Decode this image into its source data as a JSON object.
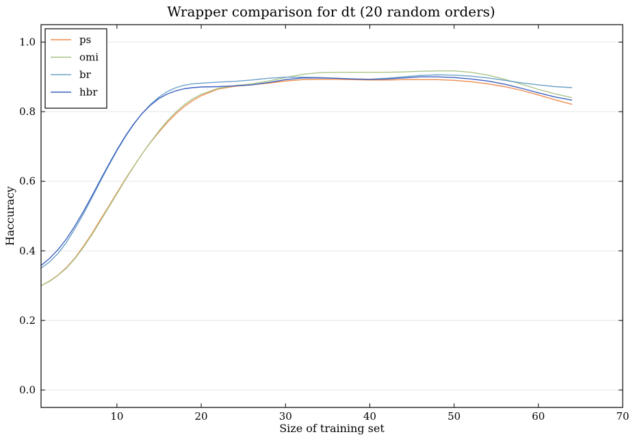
{
  "chart_data": {
    "type": "line",
    "title": "Wrapper comparison for dt (20 random orders)",
    "xlabel": "Size of training set",
    "ylabel": "Haccuracy",
    "xlim": [
      1,
      70
    ],
    "ylim": [
      -0.05,
      1.05
    ],
    "xticks": [
      10,
      20,
      30,
      40,
      50,
      60,
      70
    ],
    "yticks": [
      0.0,
      0.2,
      0.4,
      0.6,
      0.8,
      1.0
    ],
    "xtick_labels": [
      "10",
      "20",
      "30",
      "40",
      "50",
      "60",
      "70"
    ],
    "ytick_labels": [
      "0.0",
      "0.2",
      "0.4",
      "0.6",
      "0.8",
      "1.0"
    ],
    "grid": "horizontal",
    "legend_position": "top-left",
    "x": [
      1,
      2,
      3,
      4,
      5,
      6,
      7,
      8,
      9,
      10,
      11,
      12,
      13,
      14,
      15,
      16,
      17,
      18,
      19,
      20,
      22,
      24,
      26,
      28,
      30,
      32,
      34,
      36,
      38,
      40,
      42,
      44,
      46,
      48,
      50,
      52,
      54,
      56,
      58,
      60,
      62,
      64
    ],
    "series": [
      {
        "name": "ps",
        "color": "#ee8a4a",
        "values": [
          0.3,
          0.313,
          0.33,
          0.352,
          0.379,
          0.412,
          0.448,
          0.488,
          0.527,
          0.567,
          0.606,
          0.643,
          0.679,
          0.712,
          0.742,
          0.77,
          0.794,
          0.815,
          0.832,
          0.846,
          0.865,
          0.873,
          0.877,
          0.882,
          0.888,
          0.892,
          0.893,
          0.893,
          0.892,
          0.891,
          0.891,
          0.892,
          0.892,
          0.892,
          0.89,
          0.886,
          0.88,
          0.872,
          0.861,
          0.848,
          0.834,
          0.821
        ]
      },
      {
        "name": "omi",
        "color": "#a8c488",
        "values": [
          0.3,
          0.312,
          0.329,
          0.35,
          0.377,
          0.409,
          0.445,
          0.484,
          0.524,
          0.564,
          0.604,
          0.642,
          0.679,
          0.713,
          0.745,
          0.774,
          0.799,
          0.82,
          0.837,
          0.85,
          0.867,
          0.875,
          0.88,
          0.888,
          0.898,
          0.907,
          0.912,
          0.913,
          0.913,
          0.913,
          0.913,
          0.914,
          0.916,
          0.917,
          0.917,
          0.913,
          0.905,
          0.893,
          0.879,
          0.864,
          0.851,
          0.84
        ]
      },
      {
        "name": "br",
        "color": "#6aa0c8",
        "values": [
          0.35,
          0.368,
          0.392,
          0.424,
          0.463,
          0.505,
          0.551,
          0.598,
          0.644,
          0.688,
          0.728,
          0.764,
          0.795,
          0.821,
          0.842,
          0.858,
          0.869,
          0.876,
          0.88,
          0.882,
          0.885,
          0.887,
          0.891,
          0.896,
          0.899,
          0.899,
          0.898,
          0.896,
          0.894,
          0.893,
          0.896,
          0.9,
          0.904,
          0.906,
          0.905,
          0.902,
          0.897,
          0.89,
          0.883,
          0.877,
          0.872,
          0.869
        ]
      },
      {
        "name": "hbr",
        "color": "#3a5fc0",
        "values": [
          0.358,
          0.378,
          0.403,
          0.434,
          0.471,
          0.512,
          0.556,
          0.602,
          0.647,
          0.69,
          0.73,
          0.765,
          0.795,
          0.819,
          0.838,
          0.851,
          0.86,
          0.866,
          0.869,
          0.871,
          0.872,
          0.874,
          0.877,
          0.884,
          0.892,
          0.897,
          0.897,
          0.896,
          0.894,
          0.893,
          0.894,
          0.897,
          0.9,
          0.9,
          0.898,
          0.894,
          0.888,
          0.879,
          0.867,
          0.854,
          0.842,
          0.833
        ]
      }
    ]
  }
}
